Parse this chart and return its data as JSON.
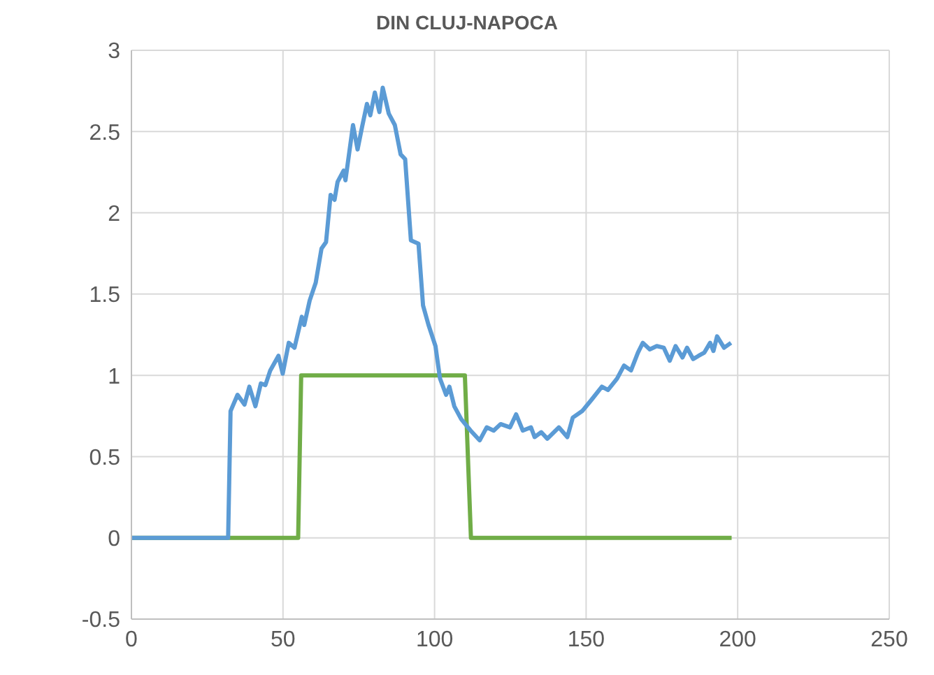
{
  "chart_data": {
    "type": "line",
    "title": "DIN CLUJ-NAPOCA",
    "xlim": [
      0,
      250
    ],
    "xticks": [
      0,
      50,
      100,
      150,
      200,
      250
    ],
    "ylim": [
      -0.5,
      3
    ],
    "yticks": [
      -0.5,
      0,
      0.5,
      1,
      1.5,
      2,
      2.5,
      3
    ],
    "grid": true,
    "legend": false,
    "marker": "none",
    "line_style": "solid",
    "series": [
      {
        "color": "#70ad47",
        "x": [
          0,
          55,
          56,
          110,
          112,
          198
        ],
        "values": [
          0,
          0,
          1,
          1,
          0,
          0
        ]
      },
      {
        "color": "#5b9bd5",
        "x": [
          0,
          31.9,
          32.7,
          35,
          37.3,
          38.9,
          40.9,
          42.7,
          44.2,
          45.8,
          48.5,
          49.9,
          51.9,
          53.8,
          56.2,
          57,
          58.8,
          60.8,
          62.7,
          64.2,
          65.7,
          67,
          68,
          70,
          70.6,
          73.1,
          74.6,
          76.1,
          77.7,
          78.8,
          80.3,
          81.8,
          82.9,
          84.9,
          86.9,
          88.8,
          90.3,
          92.2,
          94.7,
          96.2,
          98,
          100.3,
          101.8,
          103.8,
          104.9,
          106.5,
          108.8,
          111.9,
          114.9,
          117.2,
          119.5,
          121.8,
          124.9,
          126.9,
          129.1,
          131.8,
          133,
          135.2,
          137.2,
          141,
          143.8,
          145.6,
          148.7,
          151.8,
          155.2,
          157.2,
          160.2,
          162.5,
          164.8,
          167.1,
          168.7,
          171,
          173.3,
          175.6,
          177.6,
          179.5,
          181.8,
          183.3,
          185.3,
          187.1,
          189,
          190.9,
          192,
          193.2,
          195.5,
          197.8
        ],
        "values": [
          0,
          0,
          0.78,
          0.88,
          0.82,
          0.93,
          0.81,
          0.95,
          0.94,
          1.03,
          1.12,
          1.01,
          1.2,
          1.17,
          1.36,
          1.31,
          1.46,
          1.57,
          1.78,
          1.82,
          2.11,
          2.08,
          2.19,
          2.26,
          2.2,
          2.54,
          2.39,
          2.53,
          2.67,
          2.6,
          2.74,
          2.62,
          2.77,
          2.61,
          2.54,
          2.36,
          2.33,
          1.83,
          1.81,
          1.43,
          1.31,
          1.18,
          0.98,
          0.88,
          0.93,
          0.81,
          0.73,
          0.66,
          0.6,
          0.68,
          0.66,
          0.7,
          0.68,
          0.76,
          0.66,
          0.68,
          0.62,
          0.65,
          0.61,
          0.68,
          0.62,
          0.74,
          0.78,
          0.85,
          0.93,
          0.91,
          0.98,
          1.06,
          1.03,
          1.14,
          1.2,
          1.16,
          1.18,
          1.17,
          1.09,
          1.18,
          1.11,
          1.17,
          1.1,
          1.12,
          1.14,
          1.2,
          1.15,
          1.24,
          1.17,
          1.2
        ]
      }
    ]
  }
}
